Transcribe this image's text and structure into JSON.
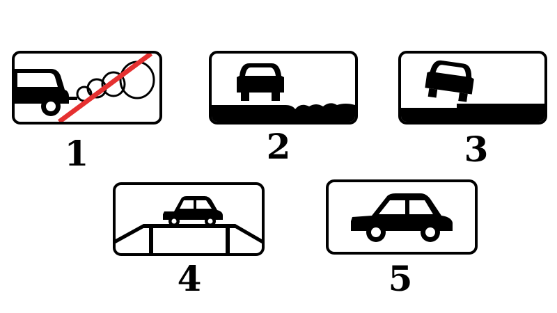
{
  "signs": [
    {
      "number": "1",
      "icon": "no-exhaust-smoke-icon",
      "slash_color": "#e53030"
    },
    {
      "number": "2",
      "icon": "car-on-unpaved-shoulder-icon"
    },
    {
      "number": "3",
      "icon": "car-partially-on-shoulder-icon"
    },
    {
      "number": "4",
      "icon": "car-on-bridge-icon"
    },
    {
      "number": "5",
      "icon": "passenger-car-icon"
    }
  ]
}
